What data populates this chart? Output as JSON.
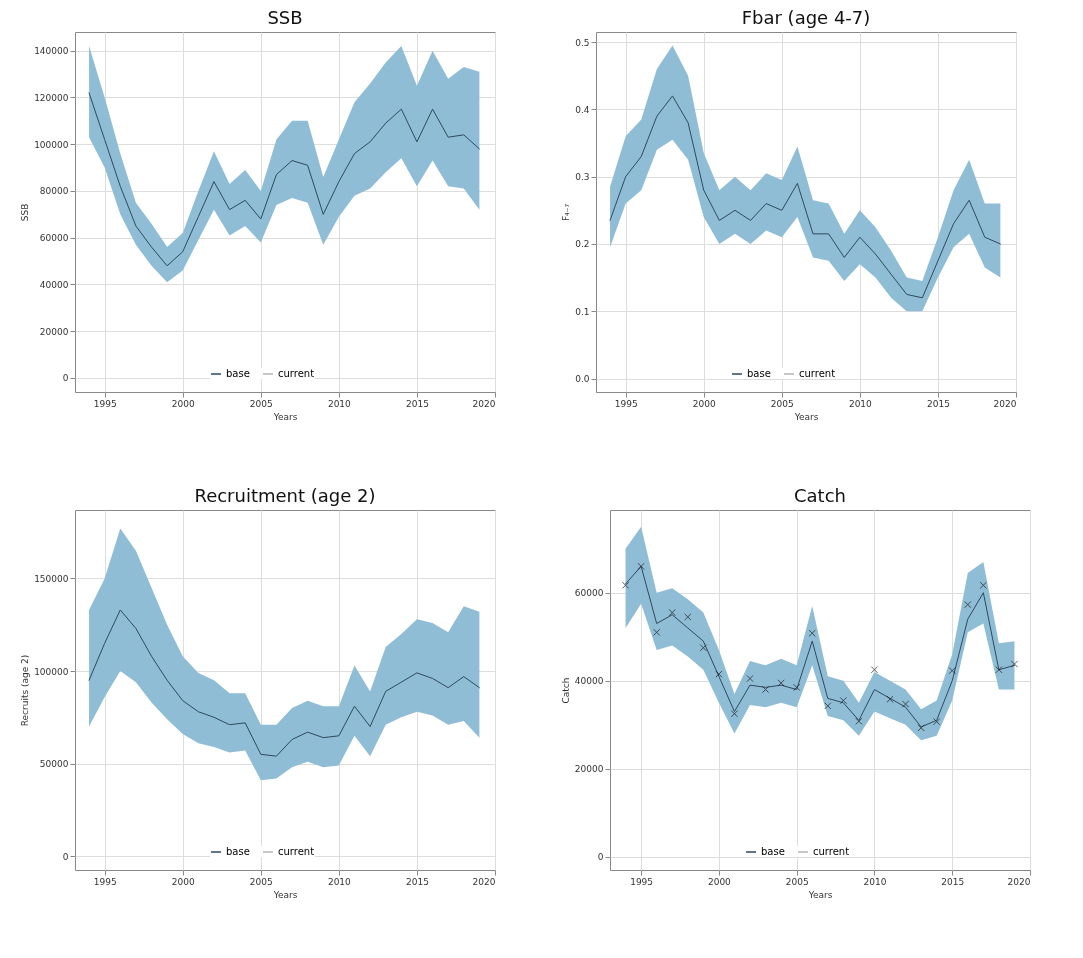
{
  "chart_data": [
    {
      "type": "line",
      "title": "SSB",
      "xlabel": "Years",
      "ylabel": "SSB",
      "x": [
        1994,
        1995,
        1996,
        1997,
        1998,
        1999,
        2000,
        2001,
        2002,
        2003,
        2004,
        2005,
        2006,
        2007,
        2008,
        2009,
        2010,
        2011,
        2012,
        2013,
        2014,
        2015,
        2016,
        2017,
        2018,
        2019
      ],
      "xlim": [
        1993.1,
        2020
      ],
      "xticks": [
        1995,
        2000,
        2005,
        2010,
        2015,
        2020
      ],
      "ylim": [
        -6000,
        148000
      ],
      "yticks": [
        0,
        20000,
        40000,
        60000,
        80000,
        100000,
        120000,
        140000
      ],
      "grid": true,
      "legend": "bottom",
      "series": [
        {
          "name": "base",
          "color": "#2e4a5c",
          "values": [
            122000,
            102000,
            82000,
            65000,
            56000,
            48000,
            54000,
            69000,
            84000,
            72000,
            76000,
            68000,
            87000,
            93000,
            91000,
            70000,
            84000,
            96000,
            101000,
            109000,
            115000,
            101000,
            115000,
            103000,
            104000,
            98000
          ],
          "lower": [
            103000,
            90000,
            70000,
            57000,
            48000,
            41000,
            46000,
            59000,
            72000,
            61000,
            65000,
            58000,
            74000,
            77000,
            75000,
            57000,
            69000,
            78000,
            81000,
            88000,
            94000,
            82000,
            93000,
            82000,
            81000,
            72000
          ],
          "upper": [
            142000,
            120000,
            96000,
            75000,
            66000,
            56000,
            62000,
            80000,
            97000,
            83000,
            89000,
            80000,
            102000,
            110000,
            110000,
            86000,
            102000,
            118000,
            126000,
            135000,
            142000,
            125000,
            140000,
            128000,
            133000,
            131000
          ]
        },
        {
          "name": "current",
          "color": "#b4b4b4",
          "values": [
            null,
            null,
            null,
            null,
            null,
            null,
            null,
            null,
            null,
            null,
            null,
            null,
            null,
            null,
            null,
            null,
            null,
            null,
            null,
            null,
            null,
            null,
            null,
            null,
            null,
            null
          ]
        }
      ]
    },
    {
      "type": "line",
      "title": "Fbar (age 4-7)",
      "xlabel": "Years",
      "ylabel": "F₄₋₇",
      "x": [
        1994,
        1995,
        1996,
        1997,
        1998,
        1999,
        2000,
        2001,
        2002,
        2003,
        2004,
        2005,
        2006,
        2007,
        2008,
        2009,
        2010,
        2011,
        2012,
        2013,
        2014,
        2015,
        2016,
        2017,
        2018,
        2019
      ],
      "xlim": [
        1993.1,
        2020
      ],
      "xticks": [
        1995,
        2000,
        2005,
        2010,
        2015,
        2020
      ],
      "ylim": [
        -0.02,
        0.515
      ],
      "yticks": [
        {
          "value": 0,
          "label": "0.0"
        },
        0.1,
        0.2,
        0.3,
        0.4,
        0.5
      ],
      "grid": true,
      "legend": "bottom",
      "series": [
        {
          "name": "base",
          "color": "#2e4a5c",
          "values": [
            0.235,
            0.3,
            0.33,
            0.39,
            0.42,
            0.38,
            0.28,
            0.235,
            0.25,
            0.235,
            0.26,
            0.25,
            0.29,
            0.215,
            0.215,
            0.18,
            0.21,
            0.185,
            0.155,
            0.125,
            0.12,
            0.175,
            0.23,
            0.265,
            0.21,
            0.2
          ],
          "lower": [
            0.195,
            0.26,
            0.28,
            0.34,
            0.355,
            0.325,
            0.24,
            0.2,
            0.215,
            0.2,
            0.22,
            0.21,
            0.24,
            0.18,
            0.175,
            0.145,
            0.17,
            0.15,
            0.12,
            0.1,
            0.1,
            0.15,
            0.195,
            0.215,
            0.165,
            0.15
          ],
          "upper": [
            0.285,
            0.36,
            0.385,
            0.46,
            0.495,
            0.45,
            0.335,
            0.28,
            0.3,
            0.28,
            0.305,
            0.295,
            0.345,
            0.265,
            0.26,
            0.215,
            0.25,
            0.225,
            0.19,
            0.15,
            0.145,
            0.21,
            0.28,
            0.325,
            0.26,
            0.26
          ]
        },
        {
          "name": "current",
          "color": "#b4b4b4",
          "values": [
            null,
            null,
            null,
            null,
            null,
            null,
            null,
            null,
            null,
            null,
            null,
            null,
            null,
            null,
            null,
            null,
            null,
            null,
            null,
            null,
            null,
            null,
            null,
            null,
            null,
            null
          ]
        }
      ]
    },
    {
      "type": "line",
      "title": "Recruitment  (age 2)",
      "xlabel": "Years",
      "ylabel": "Recruits (age 2)",
      "x": [
        1994,
        1995,
        1996,
        1997,
        1998,
        1999,
        2000,
        2001,
        2002,
        2003,
        2004,
        2005,
        2006,
        2007,
        2008,
        2009,
        2010,
        2011,
        2012,
        2013,
        2014,
        2015,
        2016,
        2017,
        2018,
        2019
      ],
      "xlim": [
        1993.1,
        2020
      ],
      "xticks": [
        1995,
        2000,
        2005,
        2010,
        2015,
        2020
      ],
      "ylim": [
        -7500,
        187000
      ],
      "yticks": [
        0,
        50000,
        100000,
        150000
      ],
      "grid": true,
      "legend": "bottom",
      "series": [
        {
          "name": "base",
          "color": "#2e4a5c",
          "values": [
            95000,
            115000,
            133000,
            123000,
            108000,
            95000,
            84000,
            78000,
            75000,
            71000,
            72000,
            55000,
            54000,
            63000,
            67000,
            64000,
            65000,
            81000,
            70000,
            89000,
            94000,
            99000,
            96000,
            91000,
            97000,
            91000
          ],
          "lower": [
            70000,
            86000,
            100000,
            94000,
            83000,
            74000,
            66000,
            61000,
            59000,
            56000,
            57000,
            41000,
            42000,
            48000,
            51000,
            48000,
            49000,
            65000,
            54000,
            71000,
            75000,
            78000,
            76000,
            71000,
            73000,
            64000
          ],
          "upper": [
            133000,
            150000,
            177000,
            165000,
            145000,
            125000,
            108000,
            99000,
            95000,
            88000,
            88000,
            71000,
            71000,
            80000,
            84000,
            81000,
            81000,
            103000,
            89000,
            113000,
            120000,
            128000,
            126000,
            121000,
            135000,
            132000
          ]
        },
        {
          "name": "current",
          "color": "#b4b4b4",
          "values": [
            null,
            null,
            null,
            null,
            null,
            null,
            null,
            null,
            null,
            null,
            null,
            null,
            null,
            null,
            null,
            null,
            null,
            null,
            null,
            null,
            null,
            null,
            null,
            null,
            null,
            null
          ]
        }
      ]
    },
    {
      "type": "line",
      "title": "Catch",
      "xlabel": "Years",
      "ylabel": "Catch",
      "x": [
        1994,
        1995,
        1996,
        1997,
        1998,
        1999,
        2000,
        2001,
        2002,
        2003,
        2004,
        2005,
        2006,
        2007,
        2008,
        2009,
        2010,
        2011,
        2012,
        2013,
        2014,
        2015,
        2016,
        2017,
        2018,
        2019
      ],
      "xlim": [
        1993.0,
        2020
      ],
      "xticks": [
        1995,
        2000,
        2005,
        2010,
        2015,
        2020
      ],
      "ylim": [
        -3000,
        78800
      ],
      "yticks": [
        0,
        20000,
        40000,
        60000
      ],
      "grid": true,
      "legend": "bottom",
      "series": [
        {
          "name": "base",
          "color": "#2e4a5c",
          "values": [
            62000,
            66000,
            53000,
            55000,
            52000,
            49000,
            41000,
            33000,
            39000,
            38500,
            39000,
            38000,
            49000,
            36000,
            35000,
            31000,
            38000,
            36000,
            34000,
            29500,
            31000,
            40000,
            54000,
            60000,
            42500,
            43500
          ],
          "lower": [
            52000,
            57500,
            47000,
            48000,
            45500,
            42500,
            35000,
            28000,
            34500,
            34000,
            35000,
            34000,
            43500,
            32000,
            31000,
            27500,
            33000,
            31500,
            30000,
            26500,
            27500,
            35500,
            51000,
            53000,
            38000,
            38000
          ],
          "upper": [
            70000,
            75000,
            60000,
            61000,
            58500,
            55500,
            47000,
            37000,
            44500,
            43500,
            45000,
            43500,
            57000,
            41000,
            40000,
            35000,
            42000,
            40000,
            38000,
            33500,
            35500,
            46000,
            64500,
            67000,
            48500,
            49000
          ]
        },
        {
          "name": "current",
          "color": "#b4b4b4",
          "values": [
            null,
            null,
            null,
            null,
            null,
            null,
            null,
            null,
            null,
            null,
            null,
            null,
            null,
            null,
            null,
            null,
            null,
            null,
            null,
            null,
            null,
            null,
            null,
            null,
            null,
            null
          ]
        },
        {
          "type": "scatter",
          "color": "#1a1a1a",
          "marker": "cross",
          "values": [
            61700,
            66000,
            51000,
            55500,
            54500,
            47500,
            41500,
            32500,
            40500,
            38000,
            39500,
            38500,
            50800,
            34300,
            35500,
            30800,
            42500,
            35800,
            34700,
            29300,
            30700,
            42300,
            57300,
            61700,
            42500,
            43800
          ]
        }
      ]
    }
  ]
}
